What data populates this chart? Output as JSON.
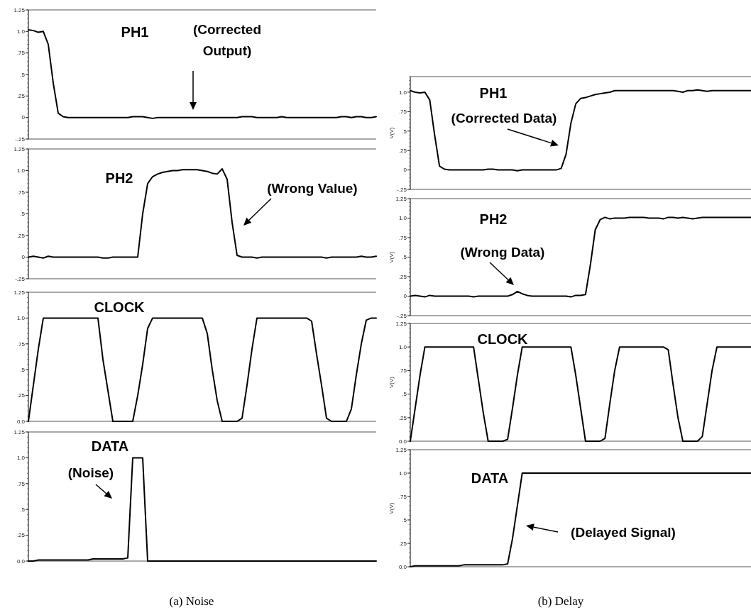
{
  "chart_data": [
    {
      "type": "line",
      "title": "PH1",
      "annotations": [
        "(Corrected Output)"
      ],
      "color": "#000000",
      "ylim": [
        -0.25,
        1.25
      ],
      "yticks": [
        {
          "value": -0.25,
          "label": "-.25"
        },
        {
          "value": 0,
          "label": "0"
        },
        {
          "value": 0.25,
          "label": ".25"
        },
        {
          "value": 0.5,
          "label": ".5"
        },
        {
          "value": 0.75,
          "label": ".75"
        },
        {
          "value": 1,
          "label": "1.0"
        },
        {
          "value": 1.25,
          "label": "1.25"
        }
      ],
      "categories": [
        null,
        null,
        null,
        null,
        null,
        null,
        null,
        null,
        null,
        null,
        null,
        null,
        null,
        null,
        null,
        null,
        null,
        null,
        null,
        null,
        null,
        null,
        null,
        null,
        null,
        null,
        null,
        null,
        null,
        null,
        null,
        null,
        null,
        null,
        null,
        null,
        null,
        null,
        null,
        null,
        null,
        null,
        null,
        null,
        null,
        null,
        null,
        null,
        null,
        null,
        null,
        null,
        null,
        null,
        null,
        null,
        null,
        null,
        null,
        null,
        null,
        null,
        null,
        null,
        null,
        null,
        null,
        null,
        null,
        null,
        null
      ],
      "values": [
        1.02,
        1.01,
        0.99,
        1.0,
        0.85,
        0.4,
        0.05,
        0.01,
        0,
        0,
        0,
        0,
        0,
        0,
        0,
        0,
        0,
        0,
        0,
        0,
        0,
        0.01,
        0.01,
        0.01,
        0,
        -0.01,
        0,
        0,
        0,
        0,
        0,
        0,
        0,
        0,
        0,
        0,
        0,
        0,
        0,
        0,
        0,
        0,
        0,
        0.01,
        0.01,
        0.01,
        0,
        0,
        0,
        0,
        0,
        0.01,
        0,
        0,
        0,
        0,
        0,
        0,
        0,
        0,
        0,
        0,
        0,
        0.01,
        0.01,
        0,
        0.01,
        0.01,
        0,
        0,
        0.01
      ]
    },
    {
      "type": "line",
      "title": "PH2",
      "annotations": [
        "(Wrong Value)"
      ],
      "color": "#000000",
      "ylim": [
        -0.25,
        1.25
      ],
      "yticks": [
        {
          "value": -0.25,
          "label": "-.25"
        },
        {
          "value": 0,
          "label": "0"
        },
        {
          "value": 0.25,
          "label": ".25"
        },
        {
          "value": 0.5,
          "label": ".5"
        },
        {
          "value": 0.75,
          "label": ".75"
        },
        {
          "value": 1,
          "label": "1.0"
        },
        {
          "value": 1.25,
          "label": "1.25"
        }
      ],
      "categories": [
        null,
        null,
        null,
        null,
        null,
        null,
        null,
        null,
        null,
        null,
        null,
        null,
        null,
        null,
        null,
        null,
        null,
        null,
        null,
        null,
        null,
        null,
        null,
        null,
        null,
        null,
        null,
        null,
        null,
        null,
        null,
        null,
        null,
        null,
        null,
        null,
        null,
        null,
        null,
        null,
        null,
        null,
        null,
        null,
        null,
        null,
        null,
        null,
        null,
        null,
        null,
        null,
        null,
        null,
        null,
        null,
        null,
        null,
        null,
        null,
        null,
        null,
        null,
        null,
        null,
        null,
        null,
        null,
        null,
        null,
        null
      ],
      "values": [
        0,
        0.01,
        0,
        -0.01,
        0.01,
        0,
        0,
        0,
        0,
        0,
        0,
        0,
        0,
        0,
        0,
        -0.01,
        -0.01,
        0,
        0,
        0,
        0,
        0,
        0,
        0.5,
        0.85,
        0.93,
        0.96,
        0.98,
        0.99,
        1.0,
        1.0,
        1.01,
        1.01,
        1.01,
        1.01,
        1.0,
        0.99,
        0.97,
        0.96,
        1.02,
        0.9,
        0.4,
        0.02,
        0,
        0,
        0,
        -0.01,
        0,
        0,
        0,
        0,
        0,
        0,
        0,
        0,
        0,
        0,
        0,
        0,
        0,
        -0.01,
        0,
        0,
        0,
        0,
        0,
        0,
        0.01,
        0,
        0,
        0.01
      ]
    },
    {
      "type": "line",
      "title": "CLOCK",
      "color": "#000000",
      "ylim": [
        0,
        1.25
      ],
      "yticks": [
        {
          "value": 0,
          "label": "0.0"
        },
        {
          "value": 0.25,
          "label": ".25"
        },
        {
          "value": 0.5,
          "label": ".5"
        },
        {
          "value": 0.75,
          "label": ".75"
        },
        {
          "value": 1,
          "label": "1.0"
        },
        {
          "value": 1.25,
          "label": "1.25"
        }
      ],
      "categories": [
        null,
        null,
        null,
        null,
        null,
        null,
        null,
        null,
        null,
        null,
        null,
        null,
        null,
        null,
        null,
        null,
        null,
        null,
        null,
        null,
        null,
        null,
        null,
        null,
        null,
        null,
        null,
        null,
        null,
        null,
        null,
        null,
        null,
        null,
        null,
        null,
        null,
        null,
        null,
        null,
        null,
        null,
        null,
        null,
        null,
        null,
        null,
        null,
        null,
        null,
        null,
        null,
        null,
        null,
        null,
        null,
        null,
        null,
        null,
        null,
        null,
        null,
        null,
        null,
        null,
        null,
        null,
        null,
        null,
        null,
        null
      ],
      "values": [
        0,
        0.35,
        0.7,
        1,
        1,
        1,
        1,
        1,
        1,
        1,
        1,
        1,
        1,
        1,
        1,
        0.6,
        0.3,
        0,
        0,
        0,
        0,
        0,
        0.25,
        0.55,
        0.9,
        1,
        1,
        1,
        1,
        1,
        1,
        1,
        1,
        1,
        1,
        1,
        0.85,
        0.5,
        0.2,
        0,
        0,
        0,
        0,
        0.03,
        0.35,
        0.7,
        1,
        1,
        1,
        1,
        1,
        1,
        1,
        1,
        1,
        1,
        1,
        0.97,
        0.65,
        0.35,
        0.03,
        0,
        0,
        0,
        0,
        0.12,
        0.45,
        0.75,
        0.98,
        1,
        1
      ]
    },
    {
      "type": "line",
      "title": "DATA",
      "annotations": [
        "(Noise)",
        "(a) Noise"
      ],
      "color": "#000000",
      "ylim": [
        0,
        1.25
      ],
      "yticks": [
        {
          "value": 0,
          "label": "0.0"
        },
        {
          "value": 0.25,
          "label": ".25"
        },
        {
          "value": 0.5,
          "label": ".5"
        },
        {
          "value": 0.75,
          "label": ".75"
        },
        {
          "value": 1,
          "label": "1.0"
        },
        {
          "value": 1.25,
          "label": "1.25"
        }
      ],
      "categories": [
        null,
        null,
        null,
        null,
        null,
        null,
        null,
        null,
        null,
        null,
        null,
        null,
        null,
        null,
        null,
        null,
        null,
        null,
        null,
        null,
        null,
        null,
        null,
        null,
        null,
        null,
        null,
        null,
        null,
        null,
        null,
        null,
        null,
        null,
        null,
        null,
        null,
        null,
        null,
        null,
        null,
        null,
        null,
        null,
        null,
        null,
        null,
        null,
        null,
        null,
        null,
        null,
        null,
        null,
        null,
        null,
        null,
        null,
        null,
        null,
        null,
        null,
        null,
        null,
        null,
        null,
        null,
        null,
        null,
        null,
        null
      ],
      "values": [
        0,
        0,
        0.01,
        0.01,
        0.01,
        0.01,
        0.01,
        0.01,
        0.01,
        0.01,
        0.01,
        0.01,
        0.01,
        0.02,
        0.02,
        0.02,
        0.02,
        0.02,
        0.02,
        0.02,
        0.03,
        1,
        1,
        1,
        0,
        0,
        0,
        0,
        0,
        0,
        0,
        0,
        0,
        0,
        0,
        0,
        0,
        0,
        0,
        0,
        0,
        0,
        0,
        0,
        0,
        0,
        0,
        0,
        0,
        0,
        0,
        0,
        0,
        0,
        0,
        0,
        0,
        0,
        0,
        0,
        0,
        0,
        0,
        0,
        0,
        0,
        0,
        0,
        0,
        0,
        0
      ]
    },
    {
      "type": "line",
      "title": "PH1",
      "ylabel": "V(V)",
      "annotations": [
        "(Corrected Data)"
      ],
      "color": "#000000",
      "ylim": [
        -0.25,
        1.2
      ],
      "yticks": [
        {
          "value": -0.25,
          "label": "-.25"
        },
        {
          "value": 0,
          "label": "0"
        },
        {
          "value": 0.25,
          "label": ".25"
        },
        {
          "value": 0.5,
          "label": ".5"
        },
        {
          "value": 0.75,
          "label": ".75"
        },
        {
          "value": 1,
          "label": "1.0"
        }
      ],
      "categories": [
        null,
        null,
        null,
        null,
        null,
        null,
        null,
        null,
        null,
        null,
        null,
        null,
        null,
        null,
        null,
        null,
        null,
        null,
        null,
        null,
        null,
        null,
        null,
        null,
        null,
        null,
        null,
        null,
        null,
        null,
        null,
        null,
        null,
        null,
        null,
        null,
        null,
        null,
        null,
        null,
        null,
        null,
        null,
        null,
        null,
        null,
        null,
        null,
        null,
        null,
        null,
        null,
        null,
        null,
        null,
        null,
        null,
        null,
        null,
        null,
        null,
        null,
        null,
        null,
        null,
        null,
        null,
        null,
        null,
        null,
        null
      ],
      "values": [
        1.02,
        1.0,
        0.99,
        1.0,
        0.9,
        0.45,
        0.05,
        0.01,
        0,
        0,
        0,
        0,
        0,
        0,
        0,
        0,
        0.01,
        0.01,
        0,
        0,
        0,
        0,
        -0.01,
        0,
        0,
        0,
        0,
        0,
        0,
        0,
        0,
        0.02,
        0.2,
        0.6,
        0.85,
        0.92,
        0.93,
        0.95,
        0.97,
        0.98,
        0.99,
        1.0,
        1.02,
        1.02,
        1.02,
        1.02,
        1.02,
        1.02,
        1.02,
        1.02,
        1.02,
        1.02,
        1.02,
        1.02,
        1.02,
        1.01,
        1.0,
        1.02,
        1.02,
        1.03,
        1.02,
        1.01,
        1.02,
        1.02,
        1.02,
        1.02,
        1.02,
        1.02,
        1.02,
        1.02,
        1.02
      ]
    },
    {
      "type": "line",
      "title": "PH2",
      "ylabel": "V(V)",
      "annotations": [
        "(Wrong Data)"
      ],
      "color": "#000000",
      "ylim": [
        -0.25,
        1.25
      ],
      "yticks": [
        {
          "value": -0.25,
          "label": "-.25"
        },
        {
          "value": 0,
          "label": "0"
        },
        {
          "value": 0.25,
          "label": ".25"
        },
        {
          "value": 0.5,
          "label": ".5"
        },
        {
          "value": 0.75,
          "label": ".75"
        },
        {
          "value": 1,
          "label": "1.0"
        },
        {
          "value": 1.25,
          "label": "1.25"
        }
      ],
      "categories": [
        null,
        null,
        null,
        null,
        null,
        null,
        null,
        null,
        null,
        null,
        null,
        null,
        null,
        null,
        null,
        null,
        null,
        null,
        null,
        null,
        null,
        null,
        null,
        null,
        null,
        null,
        null,
        null,
        null,
        null,
        null,
        null,
        null,
        null,
        null,
        null,
        null,
        null,
        null,
        null,
        null,
        null,
        null,
        null,
        null,
        null,
        null,
        null,
        null,
        null,
        null,
        null,
        null,
        null,
        null,
        null,
        null,
        null,
        null,
        null,
        null,
        null,
        null,
        null,
        null,
        null,
        null,
        null,
        null,
        null,
        null
      ],
      "values": [
        0,
        0.01,
        0,
        -0.01,
        0.01,
        0,
        0,
        0,
        0,
        0,
        0,
        0,
        0,
        -0.01,
        0,
        0,
        0,
        0,
        0,
        0,
        0,
        0.02,
        0.06,
        0.03,
        0.01,
        0,
        0,
        0,
        0,
        0,
        0,
        0,
        0,
        -0.01,
        0.01,
        0.01,
        0.02,
        0.4,
        0.85,
        0.98,
        1.01,
        0.99,
        1.0,
        1.0,
        1.0,
        1.01,
        1.01,
        1.01,
        1.01,
        1.0,
        1.0,
        1.0,
        0.99,
        1.01,
        1.01,
        1.0,
        1.01,
        1.0,
        0.99,
        1.0,
        1.01,
        1.01,
        1.01,
        1.01,
        1.01,
        1.01,
        1.01,
        1.01,
        1.01,
        1.01,
        1.01
      ]
    },
    {
      "type": "line",
      "title": "CLOCK",
      "ylabel": "V(V)",
      "color": "#000000",
      "ylim": [
        0,
        1.25
      ],
      "yticks": [
        {
          "value": 0,
          "label": "0.0"
        },
        {
          "value": 0.25,
          "label": ".25"
        },
        {
          "value": 0.5,
          "label": ".5"
        },
        {
          "value": 0.75,
          "label": ".75"
        },
        {
          "value": 1,
          "label": "1.0"
        },
        {
          "value": 1.25,
          "label": "1.25"
        }
      ],
      "categories": [
        null,
        null,
        null,
        null,
        null,
        null,
        null,
        null,
        null,
        null,
        null,
        null,
        null,
        null,
        null,
        null,
        null,
        null,
        null,
        null,
        null,
        null,
        null,
        null,
        null,
        null,
        null,
        null,
        null,
        null,
        null,
        null,
        null,
        null,
        null,
        null,
        null,
        null,
        null,
        null,
        null,
        null,
        null,
        null,
        null,
        null,
        null,
        null,
        null,
        null,
        null,
        null,
        null,
        null,
        null,
        null,
        null,
        null,
        null,
        null,
        null,
        null,
        null,
        null,
        null,
        null,
        null,
        null,
        null,
        null,
        null
      ],
      "values": [
        0,
        0.35,
        0.7,
        1,
        1,
        1,
        1,
        1,
        1,
        1,
        1,
        1,
        1,
        1,
        0.65,
        0.3,
        0,
        0,
        0,
        0,
        0.02,
        0.35,
        0.7,
        1,
        1,
        1,
        1,
        1,
        1,
        1,
        1,
        1,
        1,
        1,
        0.7,
        0.35,
        0,
        0,
        0,
        0,
        0.03,
        0.4,
        0.75,
        1,
        1,
        1,
        1,
        1,
        1,
        1,
        1,
        1,
        1,
        0.97,
        0.6,
        0.25,
        0,
        0,
        0,
        0,
        0.05,
        0.4,
        0.75,
        1,
        1,
        1,
        1,
        1,
        1,
        1,
        1
      ]
    },
    {
      "type": "line",
      "title": "DATA",
      "ylabel": "V(V)",
      "annotations": [
        "(Delayed Signal)",
        "(b) Delay"
      ],
      "color": "#000000",
      "ylim": [
        0,
        1.25
      ],
      "yticks": [
        {
          "value": 0,
          "label": "0.0"
        },
        {
          "value": 0.25,
          "label": ".25"
        },
        {
          "value": 0.5,
          "label": ".5"
        },
        {
          "value": 0.75,
          "label": ".75"
        },
        {
          "value": 1,
          "label": "1.0"
        },
        {
          "value": 1.25,
          "label": "1.25"
        }
      ],
      "categories": [
        null,
        null,
        null,
        null,
        null,
        null,
        null,
        null,
        null,
        null,
        null,
        null,
        null,
        null,
        null,
        null,
        null,
        null,
        null,
        null,
        null,
        null,
        null,
        null,
        null,
        null,
        null,
        null,
        null,
        null,
        null,
        null,
        null,
        null,
        null,
        null,
        null,
        null,
        null,
        null,
        null,
        null,
        null,
        null,
        null,
        null,
        null,
        null,
        null,
        null,
        null,
        null,
        null,
        null,
        null,
        null,
        null,
        null,
        null,
        null,
        null,
        null,
        null,
        null,
        null,
        null,
        null,
        null,
        null,
        null,
        null
      ],
      "values": [
        0,
        0.01,
        0.01,
        0.01,
        0.01,
        0.01,
        0.01,
        0.01,
        0.01,
        0.01,
        0.01,
        0.02,
        0.02,
        0.02,
        0.02,
        0.02,
        0.02,
        0.02,
        0.02,
        0.02,
        0.03,
        0.3,
        0.65,
        1,
        1,
        1,
        1,
        1,
        1,
        1,
        1,
        1,
        1,
        1,
        1,
        1,
        1,
        1,
        1,
        1,
        1,
        1,
        1,
        1,
        1,
        1,
        1,
        1,
        1,
        1,
        1,
        1,
        1,
        1,
        1,
        1,
        1,
        1,
        1,
        1,
        1,
        1,
        1,
        1,
        1,
        1,
        1,
        1,
        1,
        1,
        1
      ]
    }
  ]
}
